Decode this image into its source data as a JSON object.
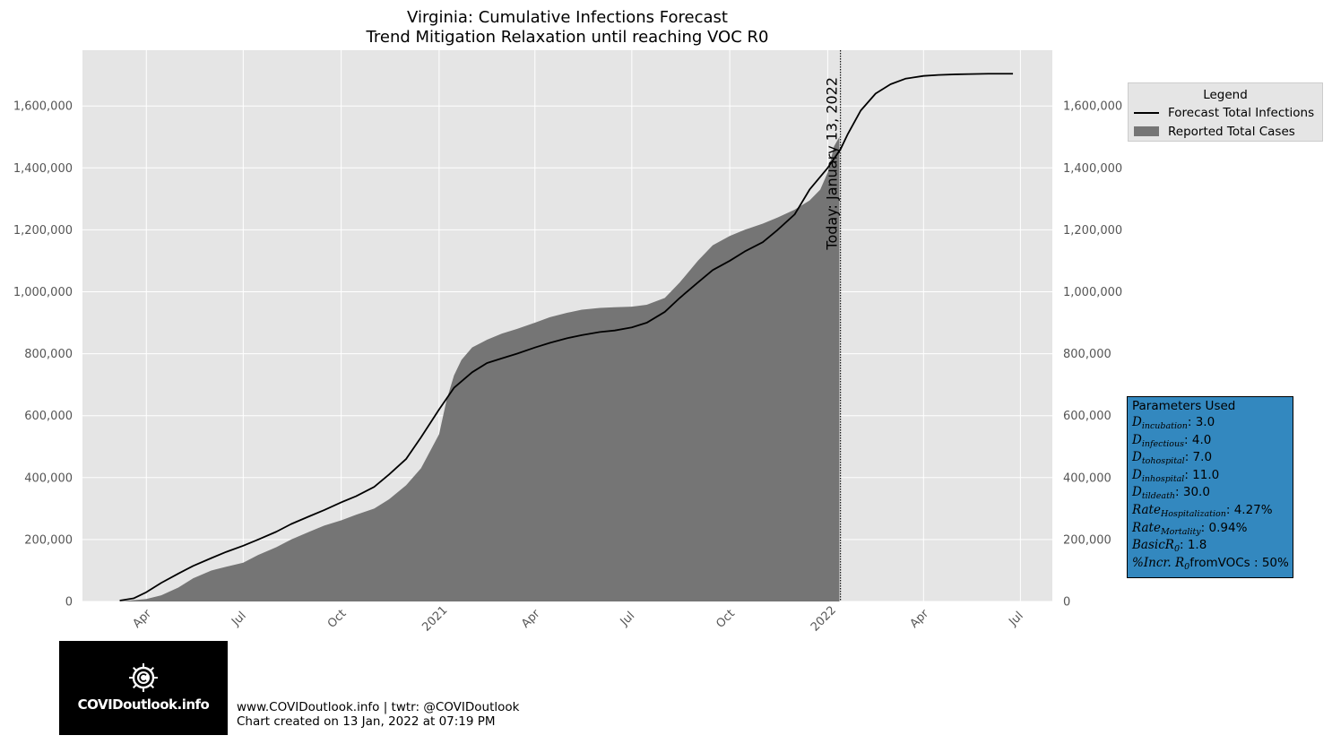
{
  "chart_data": {
    "type": "area",
    "title": "Virginia: Cumulative Infections Forecast",
    "subtitle": "Trend Mitigation Relaxation until reaching VOC R0",
    "xlabel": "",
    "ylabel": "",
    "xlim": [
      "2020-02-01",
      "2022-07-31"
    ],
    "ylim": [
      0,
      1780000
    ],
    "grid": true,
    "background": "#e5e5e5",
    "x_tick_labels": [
      "Apr",
      "Jul",
      "Oct",
      "2021",
      "Apr",
      "Jul",
      "Oct",
      "2022",
      "Apr",
      "Jul"
    ],
    "x_tick_dates": [
      "2020-04-01",
      "2020-07-01",
      "2020-10-01",
      "2021-01-01",
      "2021-04-01",
      "2021-07-01",
      "2021-10-01",
      "2022-01-01",
      "2022-04-01",
      "2022-07-01"
    ],
    "y_tick_values": [
      0,
      200000,
      400000,
      600000,
      800000,
      1000000,
      1200000,
      1400000,
      1600000
    ],
    "y_tick_labels": [
      "0",
      "200,000",
      "400,000",
      "600,000",
      "800,000",
      "1,000,000",
      "1,200,000",
      "1,400,000",
      "1,600,000"
    ],
    "today_marker": {
      "date": "2022-01-13",
      "label": "Today: January 13, 2022"
    },
    "legend": {
      "title": "Legend",
      "placement": "outside-right"
    },
    "series": [
      {
        "name": "Reported Total Cases",
        "type": "area",
        "color": "#757575",
        "x": [
          "2020-03-07",
          "2020-04-01",
          "2020-04-15",
          "2020-05-01",
          "2020-05-15",
          "2020-06-01",
          "2020-06-15",
          "2020-07-01",
          "2020-07-15",
          "2020-08-01",
          "2020-08-15",
          "2020-09-01",
          "2020-09-15",
          "2020-10-01",
          "2020-10-15",
          "2020-11-01",
          "2020-11-15",
          "2020-12-01",
          "2020-12-15",
          "2021-01-01",
          "2021-01-08",
          "2021-01-15",
          "2021-01-22",
          "2021-02-01",
          "2021-02-15",
          "2021-03-01",
          "2021-03-15",
          "2021-04-01",
          "2021-04-15",
          "2021-05-01",
          "2021-05-15",
          "2021-06-01",
          "2021-06-15",
          "2021-07-01",
          "2021-07-15",
          "2021-08-01",
          "2021-08-15",
          "2021-09-01",
          "2021-09-15",
          "2021-10-01",
          "2021-10-15",
          "2021-11-01",
          "2021-11-15",
          "2021-12-01",
          "2021-12-15",
          "2021-12-25",
          "2022-01-01",
          "2022-01-07",
          "2022-01-12"
        ],
        "y": [
          0,
          8000,
          20000,
          45000,
          75000,
          100000,
          112000,
          125000,
          150000,
          175000,
          200000,
          225000,
          245000,
          262000,
          280000,
          300000,
          330000,
          375000,
          430000,
          540000,
          650000,
          730000,
          780000,
          820000,
          845000,
          865000,
          880000,
          900000,
          918000,
          932000,
          942000,
          948000,
          950000,
          952000,
          958000,
          980000,
          1030000,
          1100000,
          1150000,
          1180000,
          1200000,
          1220000,
          1240000,
          1265000,
          1295000,
          1330000,
          1385000,
          1470000,
          1500000
        ]
      },
      {
        "name": "Forecast Total Infections",
        "type": "line",
        "color": "#000000",
        "x": [
          "2020-03-07",
          "2020-03-20",
          "2020-04-01",
          "2020-04-15",
          "2020-05-01",
          "2020-05-15",
          "2020-06-01",
          "2020-06-15",
          "2020-07-01",
          "2020-07-15",
          "2020-08-01",
          "2020-08-15",
          "2020-09-01",
          "2020-09-15",
          "2020-10-01",
          "2020-10-15",
          "2020-11-01",
          "2020-11-15",
          "2020-12-01",
          "2020-12-15",
          "2021-01-01",
          "2021-01-15",
          "2021-02-01",
          "2021-02-15",
          "2021-03-01",
          "2021-03-15",
          "2021-04-01",
          "2021-04-15",
          "2021-05-01",
          "2021-05-15",
          "2021-06-01",
          "2021-06-15",
          "2021-07-01",
          "2021-07-15",
          "2021-08-01",
          "2021-08-15",
          "2021-09-01",
          "2021-09-15",
          "2021-10-01",
          "2021-10-15",
          "2021-11-01",
          "2021-11-15",
          "2021-12-01",
          "2021-12-15",
          "2022-01-01",
          "2022-01-13",
          "2022-01-20",
          "2022-02-01",
          "2022-02-15",
          "2022-03-01",
          "2022-03-15",
          "2022-04-01",
          "2022-04-15",
          "2022-05-01",
          "2022-05-15",
          "2022-06-01",
          "2022-06-15",
          "2022-06-24"
        ],
        "y": [
          3000,
          10000,
          30000,
          60000,
          90000,
          115000,
          140000,
          160000,
          180000,
          200000,
          225000,
          250000,
          275000,
          295000,
          320000,
          340000,
          370000,
          410000,
          460000,
          530000,
          620000,
          690000,
          740000,
          770000,
          785000,
          800000,
          820000,
          835000,
          850000,
          860000,
          870000,
          875000,
          885000,
          900000,
          935000,
          980000,
          1030000,
          1070000,
          1100000,
          1130000,
          1160000,
          1200000,
          1250000,
          1330000,
          1400000,
          1460000,
          1510000,
          1585000,
          1640000,
          1670000,
          1688000,
          1697000,
          1700000,
          1702000,
          1703000,
          1704000,
          1704000,
          1704000
        ]
      }
    ]
  },
  "parameters": {
    "title": "Parameters Used",
    "rows": [
      {
        "symbol": "D",
        "subscript": "incubation",
        "value": ": 3.0"
      },
      {
        "symbol": "D",
        "subscript": "infectious",
        "value": ": 4.0"
      },
      {
        "symbol": "D",
        "subscript": "tohospital",
        "value": ": 7.0"
      },
      {
        "symbol": "D",
        "subscript": "inhospital",
        "value": ": 11.0"
      },
      {
        "symbol": "D",
        "subscript": "tildeath",
        "value": ": 30.0"
      },
      {
        "symbol": "Rate",
        "subscript": "Hospitalization",
        "value": ": 4.27%"
      },
      {
        "symbol": "Rate",
        "subscript": "Mortality",
        "value": ": 0.94%"
      },
      {
        "symbol": "BasicR",
        "subscript": "0",
        "value": ": 1.8"
      },
      {
        "symbol": "%Incr. R",
        "subscript": "0",
        "value": "fromVOCs : 50%"
      }
    ]
  },
  "logo": {
    "text": "COVIDoutlook.info"
  },
  "footer": {
    "line1": "www.COVIDoutlook.info | twtr: @COVIDoutlook",
    "line2": "Chart created on 13 Jan, 2022 at 07:19 PM"
  }
}
